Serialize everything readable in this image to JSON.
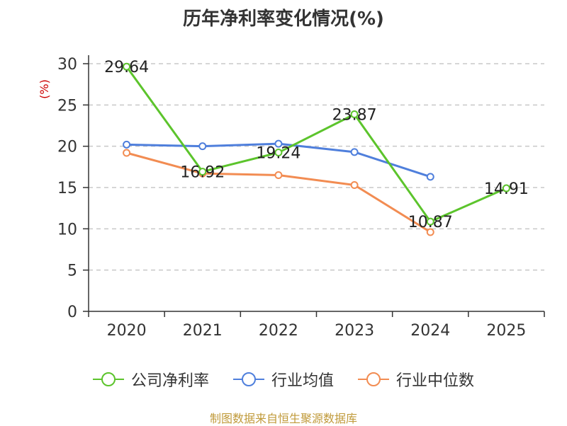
{
  "title": "历年净利率变化情况(%)",
  "source": "制图数据来自恒生聚源数据库",
  "colors": {
    "company": "#5cc42c",
    "industry_avg": "#4f7fdc",
    "industry_median": "#f28c52",
    "source": "#c09a3a",
    "ylabel": "#cc0000"
  },
  "chart_data": {
    "type": "line",
    "title": "历年净利率变化情况(%)",
    "xlabel": "",
    "ylabel": "(%)",
    "ylim": [
      0,
      30
    ],
    "yticks": [
      0,
      5,
      10,
      15,
      20,
      25,
      30
    ],
    "grid": true,
    "legend_position": "bottom",
    "categories": [
      "2020",
      "2021",
      "2022",
      "2023",
      "2024",
      "2025"
    ],
    "series": [
      {
        "name": "公司净利率",
        "color": "#5cc42c",
        "values": [
          29.64,
          16.92,
          19.24,
          23.87,
          10.87,
          14.91
        ],
        "labels": [
          "29.64",
          "16.92",
          "19.24",
          "23.87",
          "10.87",
          "14.91"
        ]
      },
      {
        "name": "行业均值",
        "color": "#4f7fdc",
        "values": [
          20.2,
          20.0,
          20.3,
          19.3,
          16.3,
          null
        ]
      },
      {
        "name": "行业中位数",
        "color": "#f28c52",
        "values": [
          19.2,
          16.7,
          16.5,
          15.3,
          9.6,
          null
        ]
      }
    ]
  }
}
